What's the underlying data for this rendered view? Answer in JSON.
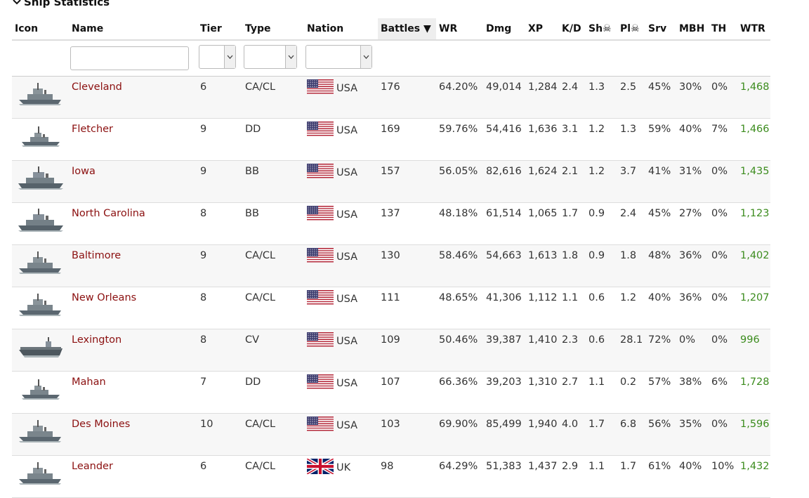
{
  "section": {
    "title": "Ship Statistics"
  },
  "columns": {
    "icon": "Icon",
    "name": "Name",
    "tier": "Tier",
    "type": "Type",
    "nation": "Nation",
    "battles": "Battles ▼",
    "wr": "WR",
    "dmg": "Dmg",
    "xp": "XP",
    "kd": "K/D",
    "sh": "Sh☠",
    "pl": "Pl☠",
    "srv": "Srv",
    "mbh": "MBH",
    "th": "TH",
    "wtr": "WTR"
  },
  "filters": {
    "name_value": "",
    "tier_value": "",
    "type_value": "",
    "nation_value": ""
  },
  "colors": {
    "name_link": "#8b1010",
    "wtr_good": "#3c8c1e",
    "sorted_header_bg": "#eeeeee"
  },
  "ships": [
    {
      "icon": "cruiser-icon",
      "name": "Cleveland",
      "tier": "6",
      "type": "CA/CL",
      "flag": "us-flag-icon",
      "nation": "USA",
      "battles": "176",
      "wr": "64.20%",
      "dmg": "49,014",
      "xp": "1,284",
      "kd": "2.4",
      "sh": "1.3",
      "pl": "2.5",
      "srv": "45%",
      "mbh": "30%",
      "th": "0%",
      "wtr": "1,468"
    },
    {
      "icon": "destroyer-icon",
      "name": "Fletcher",
      "tier": "9",
      "type": "DD",
      "flag": "us-flag-icon",
      "nation": "USA",
      "battles": "169",
      "wr": "59.76%",
      "dmg": "54,416",
      "xp": "1,636",
      "kd": "3.1",
      "sh": "1.2",
      "pl": "1.3",
      "srv": "59%",
      "mbh": "40%",
      "th": "7%",
      "wtr": "1,466"
    },
    {
      "icon": "battleship-icon",
      "name": "Iowa",
      "tier": "9",
      "type": "BB",
      "flag": "us-flag-icon",
      "nation": "USA",
      "battles": "157",
      "wr": "56.05%",
      "dmg": "82,616",
      "xp": "1,624",
      "kd": "2.1",
      "sh": "1.2",
      "pl": "3.7",
      "srv": "41%",
      "mbh": "31%",
      "th": "0%",
      "wtr": "1,435"
    },
    {
      "icon": "battleship-icon",
      "name": "North Carolina",
      "tier": "8",
      "type": "BB",
      "flag": "us-flag-icon",
      "nation": "USA",
      "battles": "137",
      "wr": "48.18%",
      "dmg": "61,514",
      "xp": "1,065",
      "kd": "1.7",
      "sh": "0.9",
      "pl": "2.4",
      "srv": "45%",
      "mbh": "27%",
      "th": "0%",
      "wtr": "1,123"
    },
    {
      "icon": "cruiser-icon",
      "name": "Baltimore",
      "tier": "9",
      "type": "CA/CL",
      "flag": "us-flag-icon",
      "nation": "USA",
      "battles": "130",
      "wr": "58.46%",
      "dmg": "54,663",
      "xp": "1,613",
      "kd": "1.8",
      "sh": "0.9",
      "pl": "1.8",
      "srv": "48%",
      "mbh": "36%",
      "th": "0%",
      "wtr": "1,402"
    },
    {
      "icon": "cruiser-icon",
      "name": "New Orleans",
      "tier": "8",
      "type": "CA/CL",
      "flag": "us-flag-icon",
      "nation": "USA",
      "battles": "111",
      "wr": "48.65%",
      "dmg": "41,306",
      "xp": "1,112",
      "kd": "1.1",
      "sh": "0.6",
      "pl": "1.2",
      "srv": "40%",
      "mbh": "36%",
      "th": "0%",
      "wtr": "1,207"
    },
    {
      "icon": "carrier-icon",
      "name": "Lexington",
      "tier": "8",
      "type": "CV",
      "flag": "us-flag-icon",
      "nation": "USA",
      "battles": "109",
      "wr": "50.46%",
      "dmg": "39,387",
      "xp": "1,410",
      "kd": "2.3",
      "sh": "0.6",
      "pl": "28.1",
      "srv": "72%",
      "mbh": "0%",
      "th": "0%",
      "wtr": "996"
    },
    {
      "icon": "destroyer-icon",
      "name": "Mahan",
      "tier": "7",
      "type": "DD",
      "flag": "us-flag-icon",
      "nation": "USA",
      "battles": "107",
      "wr": "66.36%",
      "dmg": "39,203",
      "xp": "1,310",
      "kd": "2.7",
      "sh": "1.1",
      "pl": "0.2",
      "srv": "57%",
      "mbh": "38%",
      "th": "6%",
      "wtr": "1,728"
    },
    {
      "icon": "cruiser-icon",
      "name": "Des Moines",
      "tier": "10",
      "type": "CA/CL",
      "flag": "us-flag-icon",
      "nation": "USA",
      "battles": "103",
      "wr": "69.90%",
      "dmg": "85,499",
      "xp": "1,940",
      "kd": "4.0",
      "sh": "1.7",
      "pl": "6.8",
      "srv": "56%",
      "mbh": "35%",
      "th": "0%",
      "wtr": "1,596"
    },
    {
      "icon": "cruiser-icon",
      "name": "Leander",
      "tier": "6",
      "type": "CA/CL",
      "flag": "uk-flag-icon",
      "nation": "UK",
      "battles": "98",
      "wr": "64.29%",
      "dmg": "51,383",
      "xp": "1,437",
      "kd": "2.9",
      "sh": "1.1",
      "pl": "1.7",
      "srv": "61%",
      "mbh": "40%",
      "th": "10%",
      "wtr": "1,432"
    }
  ]
}
